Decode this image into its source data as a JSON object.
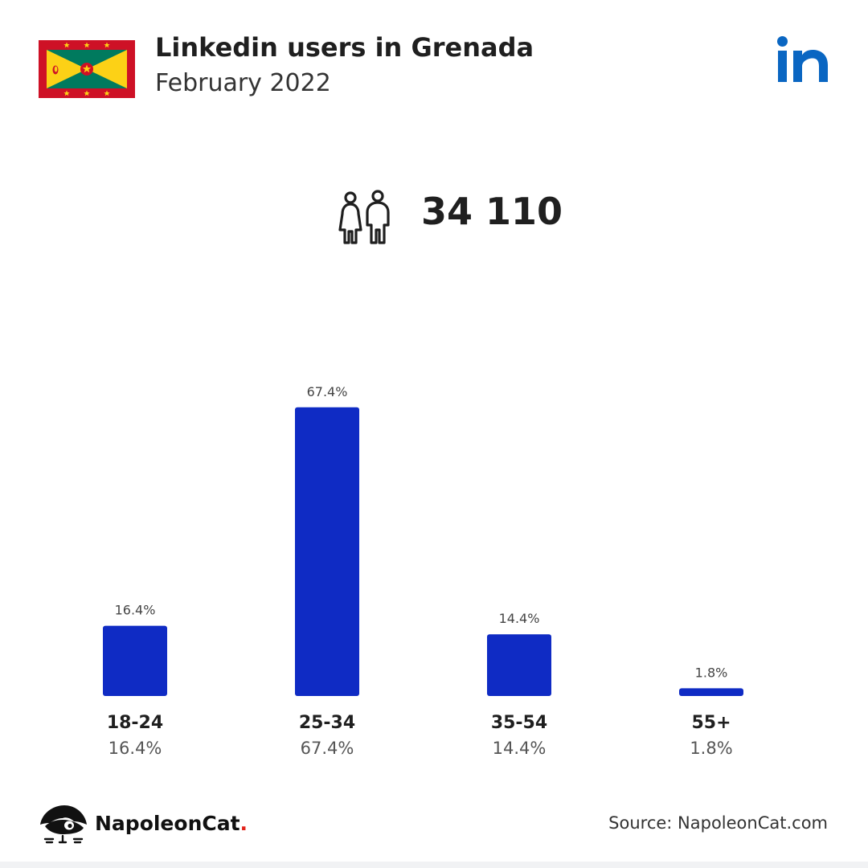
{
  "header": {
    "title": "Linkedin users in Grenada",
    "subtitle": "February 2022"
  },
  "flag_colors": {
    "red": "#CE1126",
    "yellow": "#FCD116",
    "green": "#007A5E"
  },
  "logo_color": "#0A66C2",
  "total_users": "34 110",
  "chart_data": {
    "type": "bar",
    "categories": [
      "18-24",
      "25-34",
      "35-54",
      "55+"
    ],
    "values": [
      16.4,
      67.4,
      14.4,
      1.8
    ],
    "value_labels": [
      "16.4%",
      "67.4%",
      "14.4%",
      "1.8%"
    ],
    "bar_color": "#0F2BC4",
    "grid": false,
    "legend": "none"
  },
  "footer": {
    "brand": "NapoleonCat",
    "brand_dot": ".",
    "source": "Source: NapoleonCat.com"
  }
}
